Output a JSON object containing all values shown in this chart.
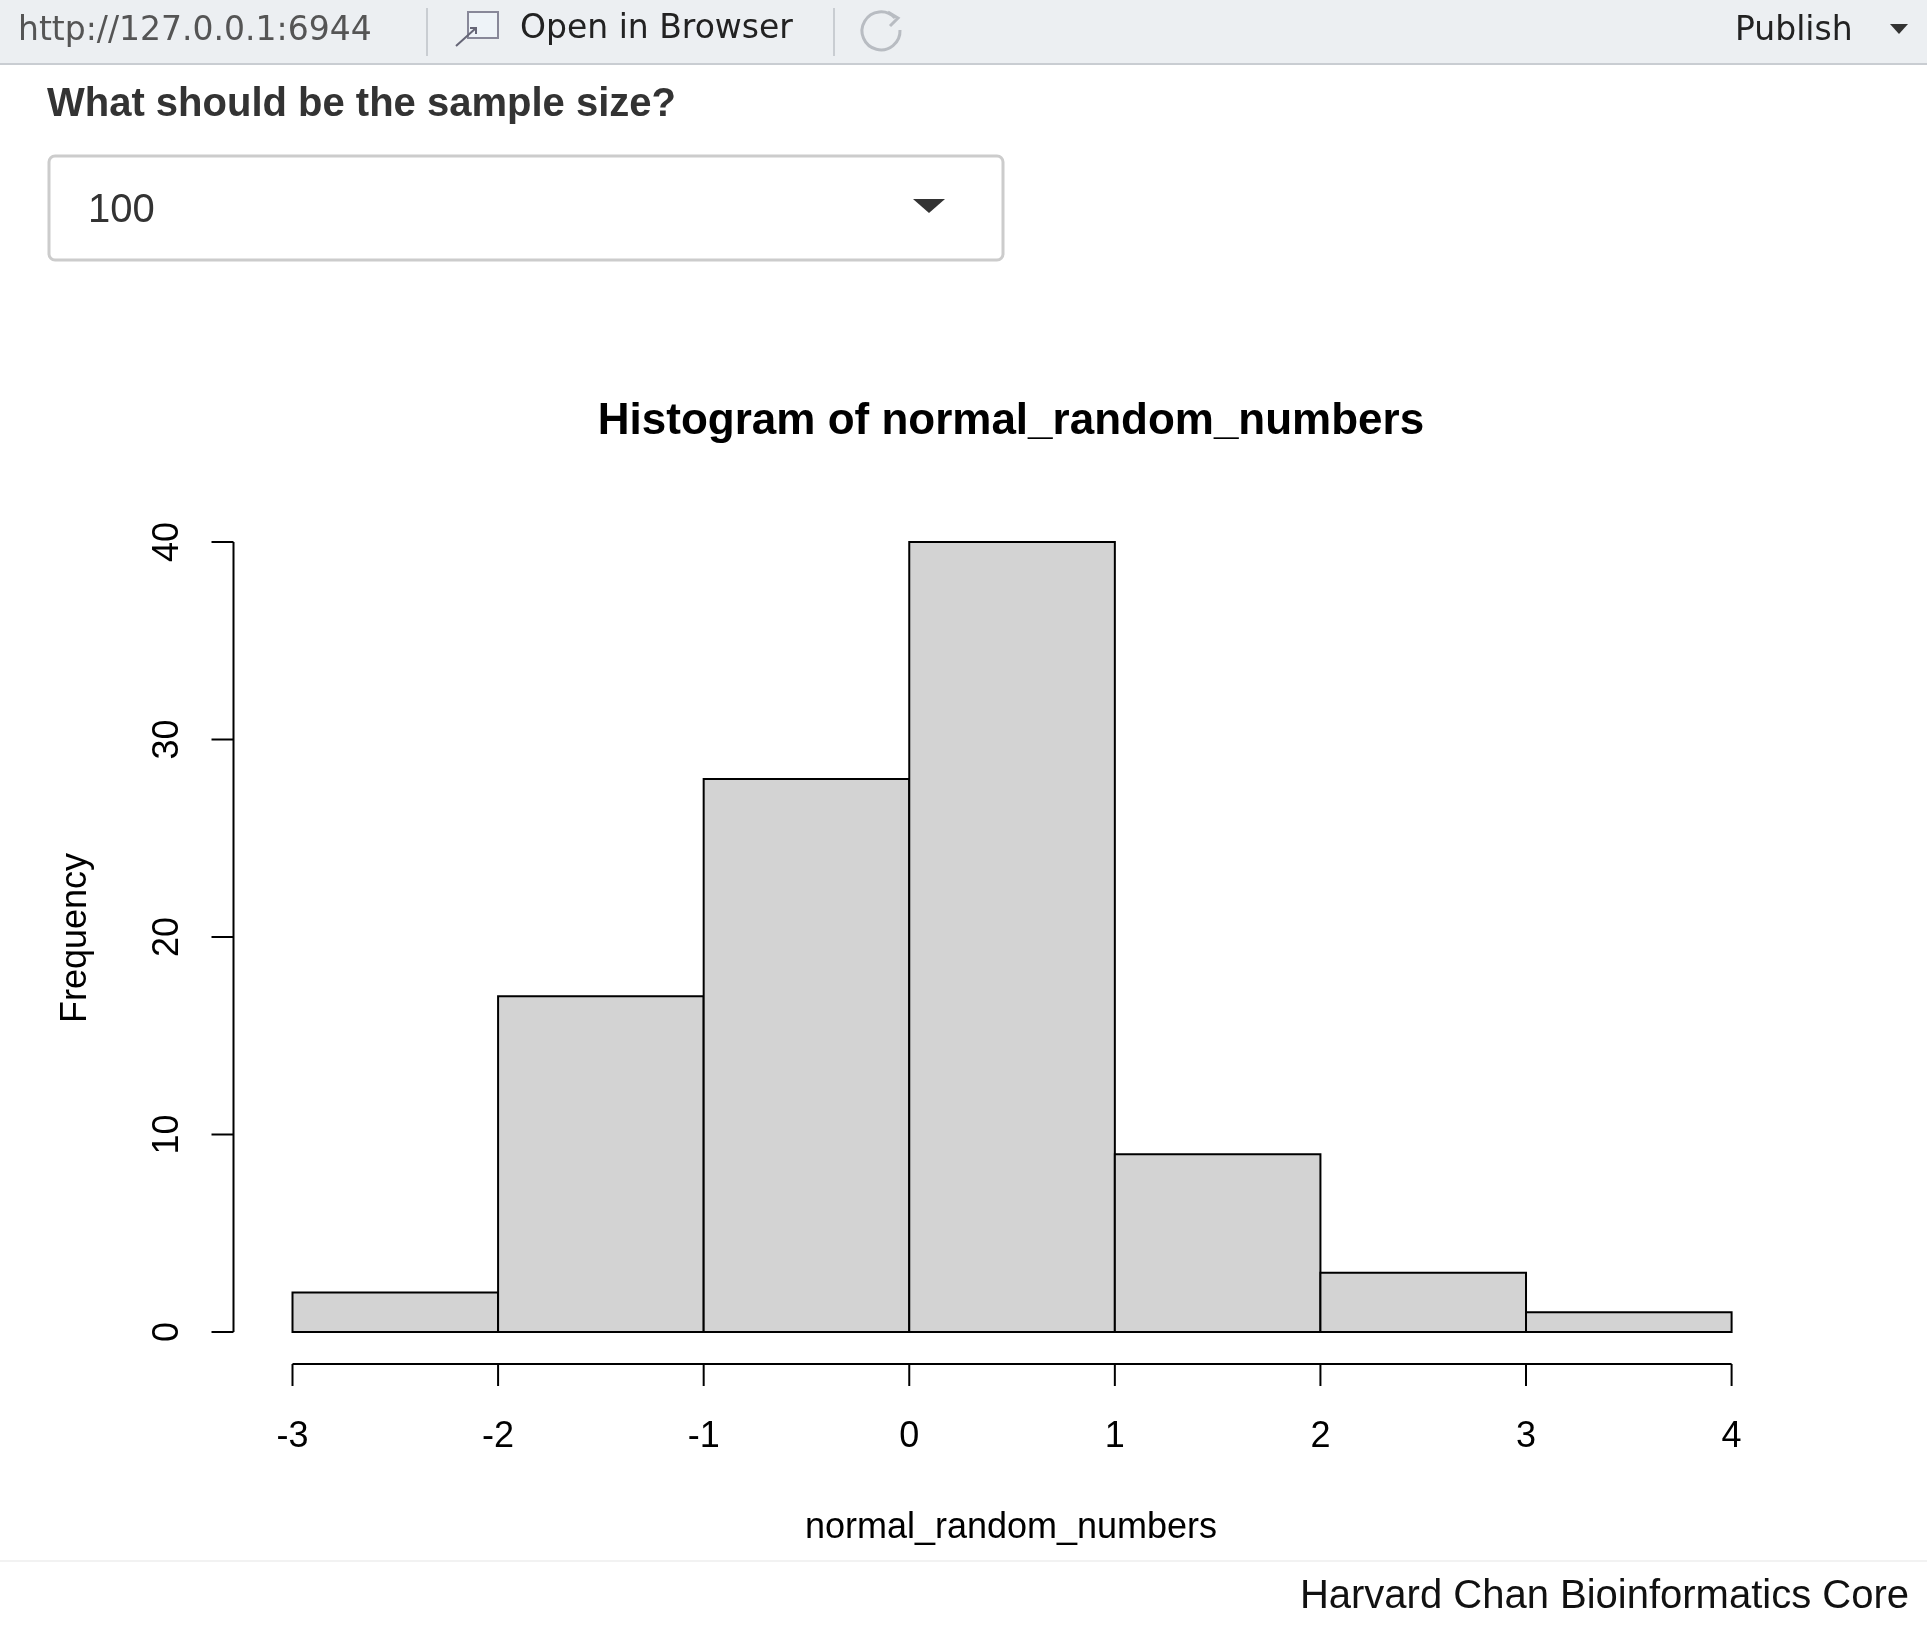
{
  "chart_data": {
    "type": "histogram",
    "title": "Histogram of normal_random_numbers",
    "xlabel": "normal_random_numbers",
    "ylabel": "Frequency",
    "bins": [
      -3,
      -2,
      -1,
      0,
      1,
      2,
      3,
      4
    ],
    "values": [
      2,
      17,
      28,
      40,
      9,
      3,
      1
    ],
    "color": "#d3d3d3",
    "xlim": [
      -3,
      4
    ],
    "xticks": [
      -3,
      -2,
      -1,
      0,
      1,
      2,
      3,
      4
    ],
    "ylim": [
      0,
      40
    ],
    "yticks": [
      0,
      10,
      20,
      30,
      40
    ],
    "grid": false,
    "annotations": [
      "http://127.0.0.1:6944",
      "Open in Browser",
      "Publish",
      "What should be the sample size?",
      "100",
      "Harvard Chan Bioinformatics Core"
    ]
  }
}
